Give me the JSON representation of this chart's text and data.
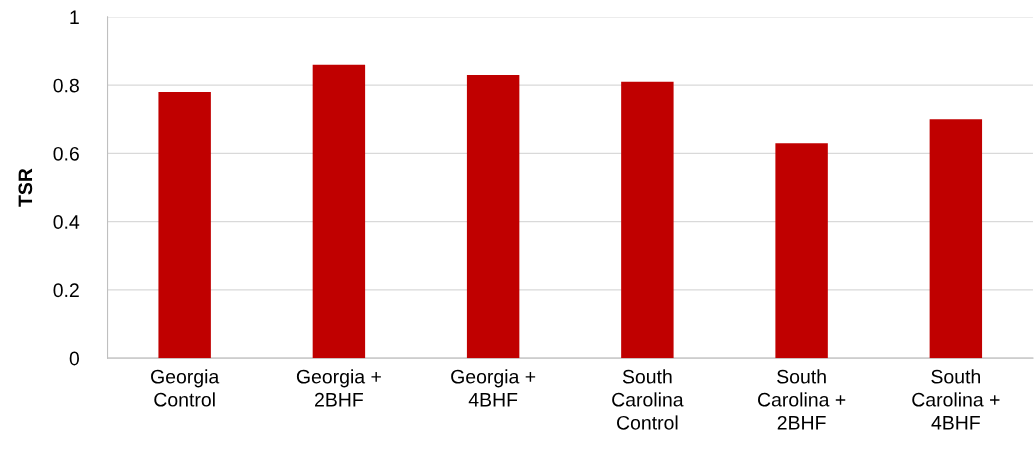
{
  "chart_data": {
    "type": "bar",
    "ylabel": "TSR",
    "categories": [
      "Georgia\nControl",
      "Georgia +\n2BHF",
      "Georgia +\n4BHF",
      "South\nCarolina\nControl",
      "South\nCarolina +\n2BHF",
      "South\nCarolina +\n4BHF"
    ],
    "values": [
      0.78,
      0.86,
      0.83,
      0.81,
      0.63,
      0.7
    ],
    "color": "#c00000",
    "ylim": [
      0,
      1
    ],
    "yticks": [
      0,
      0.2,
      0.4,
      0.6,
      0.8,
      1
    ],
    "grid": "y",
    "legend": false
  }
}
